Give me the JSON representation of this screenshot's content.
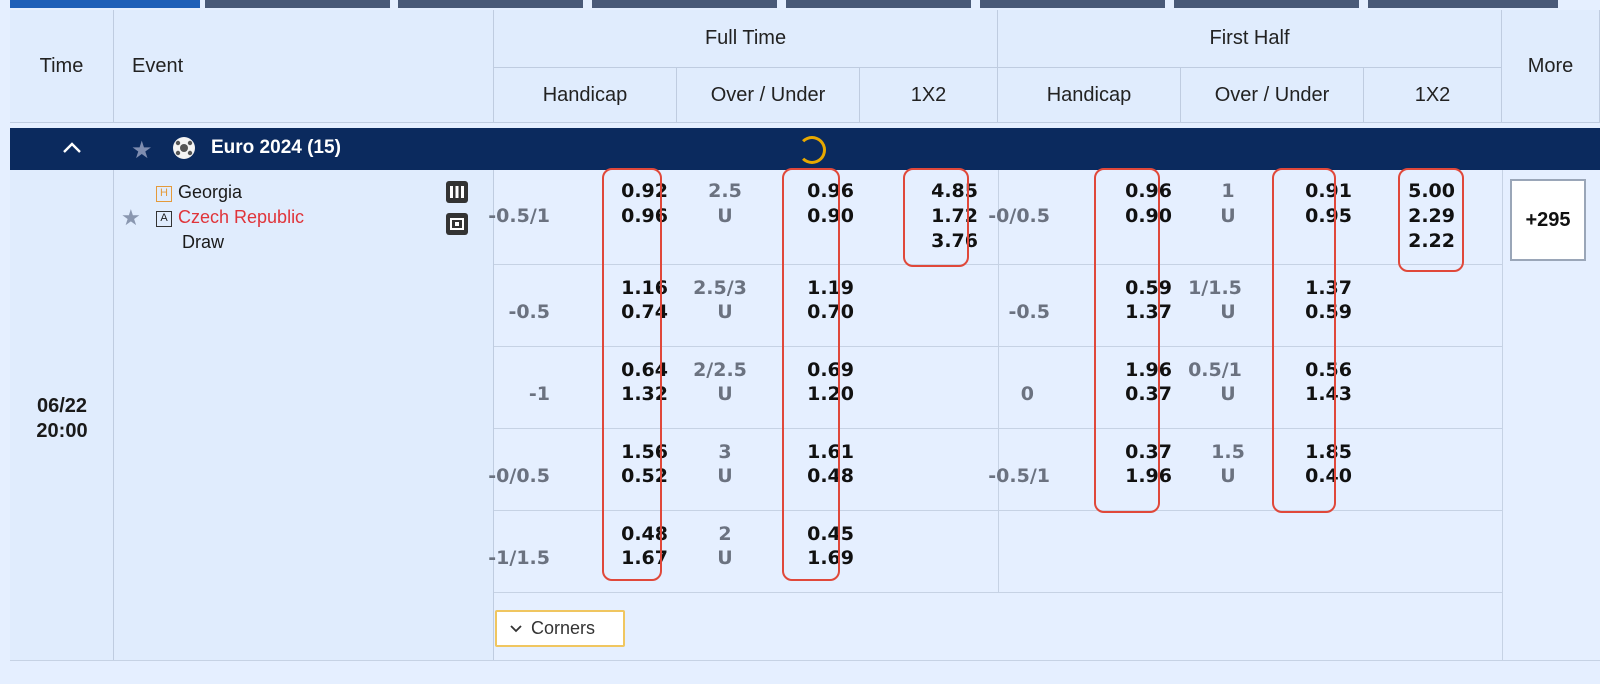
{
  "header": {
    "time": "Time",
    "event": "Event",
    "full_time": "Full Time",
    "first_half": "First Half",
    "more": "More",
    "cols": [
      "Handicap",
      "Over / Under",
      "1X2",
      "Handicap",
      "Over / Under",
      "1X2"
    ]
  },
  "league": {
    "name": "Euro 2024 (15)"
  },
  "match": {
    "date": "06/22",
    "time": "20:00",
    "home_badge": "H",
    "home": "Georgia",
    "away_badge": "A",
    "away": "Czech Republic",
    "draw": "Draw",
    "more_count": "+295"
  },
  "ft_rows": [
    {
      "hdp": "-0.5/1",
      "h1": "0.92",
      "h2": "0.96",
      "ou": "2.5",
      "ou_u": "U",
      "o1": "0.96",
      "o2": "0.90"
    },
    {
      "hdp": "-0.5",
      "h1": "1.16",
      "h2": "0.74",
      "ou": "2.5/3",
      "ou_u": "U",
      "o1": "1.19",
      "o2": "0.70"
    },
    {
      "hdp": "-1",
      "h1": "0.64",
      "h2": "1.32",
      "ou": "2/2.5",
      "ou_u": "U",
      "o1": "0.69",
      "o2": "1.20"
    },
    {
      "hdp": "-0/0.5",
      "h1": "1.56",
      "h2": "0.52",
      "ou": "3",
      "ou_u": "U",
      "o1": "1.61",
      "o2": "0.48"
    },
    {
      "hdp": "-1/1.5",
      "h1": "0.48",
      "h2": "1.67",
      "ou": "2",
      "ou_u": "U",
      "o1": "0.45",
      "o2": "1.69"
    }
  ],
  "ft_1x2": [
    "4.85",
    "1.72",
    "3.76"
  ],
  "fh_rows": [
    {
      "hdp": "-0/0.5",
      "h1": "0.96",
      "h2": "0.90",
      "ou": "1",
      "ou_u": "U",
      "o1": "0.91",
      "o2": "0.95"
    },
    {
      "hdp": "-0.5",
      "h1": "0.59",
      "h2": "1.37",
      "ou": "1/1.5",
      "ou_u": "U",
      "o1": "1.37",
      "o2": "0.59"
    },
    {
      "hdp": "0",
      "h1": "1.96",
      "h2": "0.37",
      "ou": "0.5/1",
      "ou_u": "U",
      "o1": "0.56",
      "o2": "1.43"
    },
    {
      "hdp": "-0.5/1",
      "h1": "0.37",
      "h2": "1.96",
      "ou": "1.5",
      "ou_u": "U",
      "o1": "1.85",
      "o2": "0.40"
    }
  ],
  "fh_1x2": [
    "5.00",
    "2.29",
    "2.22"
  ],
  "corners_label": "Corners",
  "colors": {
    "navy": "#0b2a5e",
    "highlight": "#e0483a",
    "away_team": "#e0343a",
    "bg": "#e5efff"
  }
}
